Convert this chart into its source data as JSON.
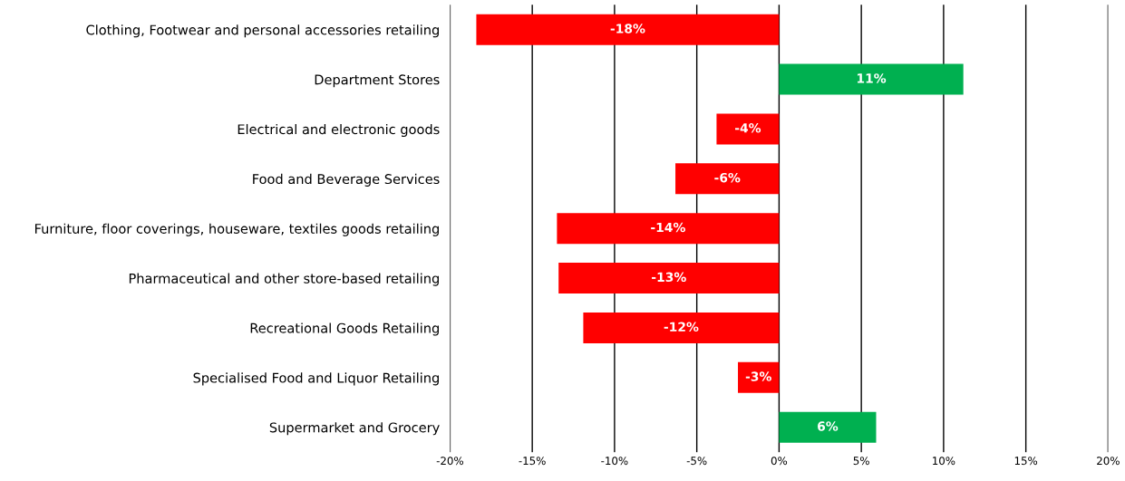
{
  "chart_data": {
    "type": "bar",
    "orientation": "horizontal",
    "categories": [
      "Clothing, Footwear and personal accessories retailing",
      "Department Stores",
      "Electrical and electronic goods",
      "Food and Beverage Services",
      "Furniture, floor coverings, houseware, textiles goods retailing",
      "Pharmaceutical and other store-based retailing",
      "Recreational Goods Retailing",
      "Specialised Food and Liquor Retailing",
      "Supermarket and Grocery"
    ],
    "values": [
      -18.4,
      11.2,
      -3.8,
      -6.3,
      -13.5,
      -13.4,
      -11.9,
      -2.5,
      5.9
    ],
    "colors": [
      "#ff0000",
      "#00b050",
      "#ff0000",
      "#ff0000",
      "#ff0000",
      "#ff0000",
      "#ff0000",
      "#ff0000",
      "#00b050"
    ],
    "value_labels": [
      "-18%",
      "11%",
      "-4%",
      "-6%",
      "-14%",
      "-13%",
      "-12%",
      "-3%",
      "6%"
    ],
    "xlim": [
      -20,
      20
    ],
    "xticks": [
      {
        "value": -20,
        "label": "-20%"
      },
      {
        "value": -15,
        "label": "-15%"
      },
      {
        "value": -10,
        "label": "-10%"
      },
      {
        "value": -5,
        "label": "-5%"
      },
      {
        "value": 0,
        "label": "0%"
      },
      {
        "value": 5,
        "label": "5%"
      },
      {
        "value": 10,
        "label": "10%"
      },
      {
        "value": 15,
        "label": "15%"
      },
      {
        "value": 20,
        "label": "20%"
      }
    ],
    "grid": "x",
    "legend": false
  }
}
